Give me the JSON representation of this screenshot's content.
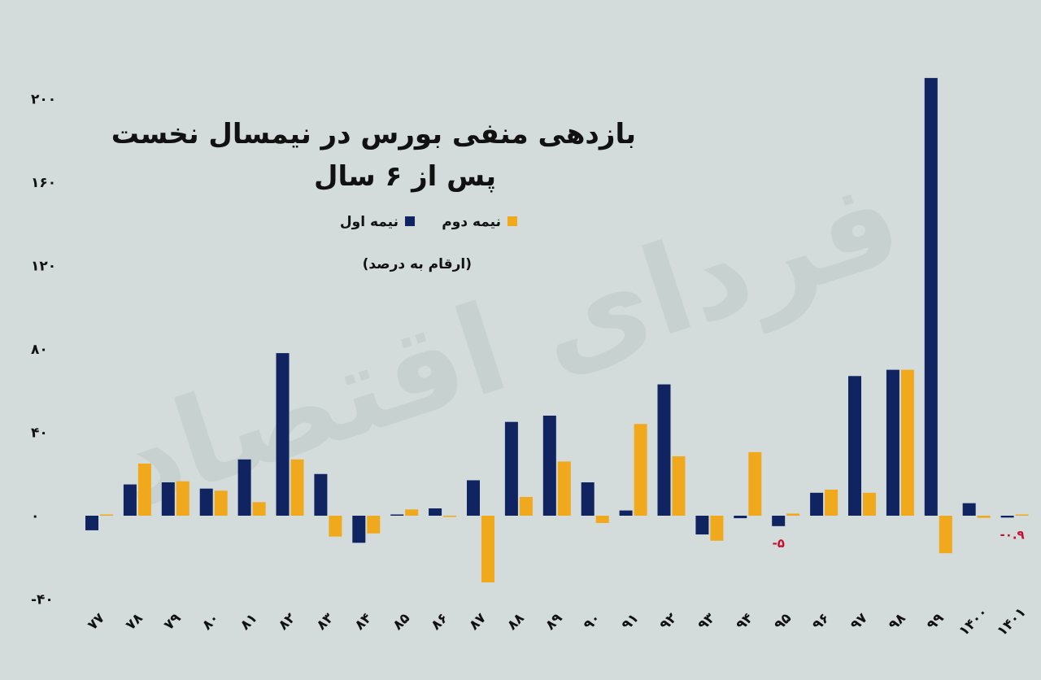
{
  "watermark": "فردای اقتصاد",
  "chart_data": {
    "type": "bar",
    "title_lines": [
      "بازدهی منفی بورس در نیمسال نخست",
      "پس از ۶ سال"
    ],
    "note": "(ارقام به درصد)",
    "legend_position": "top-left",
    "grid": false,
    "ylim": [
      -40,
      210
    ],
    "yticks": [
      -40,
      0,
      40,
      80,
      120,
      160,
      200
    ],
    "ytick_labels": [
      "-۴۰",
      "۰",
      "۴۰",
      "۸۰",
      "۱۲۰",
      "۱۶۰",
      "۲۰۰"
    ],
    "categories": [
      "۷۷",
      "۷۸",
      "۷۹",
      "۸۰",
      "۸۱",
      "۸۲",
      "۸۳",
      "۸۴",
      "۸۵",
      "۸۶",
      "۸۷",
      "۸۸",
      "۸۹",
      "۹۰",
      "۹۱",
      "۹۲",
      "۹۳",
      "۹۴",
      "۹۵",
      "۹۶",
      "۹۷",
      "۹۸",
      "۹۹",
      "۱۴۰۰",
      "۱۴۰۱"
    ],
    "series": [
      {
        "name": "نیمه اول",
        "color": "#0f2460",
        "values": [
          -7,
          15,
          16,
          13,
          27,
          78,
          20,
          -13,
          0.3,
          3.5,
          17,
          45,
          48,
          16,
          2.5,
          63,
          -9,
          -1.2,
          -5,
          11,
          67,
          70,
          210,
          6,
          -0.9
        ]
      },
      {
        "name": "نیمه دوم",
        "color": "#f0a81c",
        "values": [
          0.5,
          25,
          16.5,
          12,
          6.5,
          27,
          -10,
          -8.5,
          3,
          -0.5,
          -32,
          9,
          26,
          -3.5,
          44,
          28.5,
          -12,
          30.5,
          1,
          12.5,
          11,
          70,
          -18,
          -1,
          0
        ]
      }
    ],
    "data_labels": [
      {
        "category_index": 18,
        "series_index": 0,
        "text": "-۵",
        "color": "#c8102e"
      },
      {
        "category_index": 24,
        "series_index": 0,
        "text": "-۰.۹",
        "color": "#c8102e"
      }
    ]
  }
}
